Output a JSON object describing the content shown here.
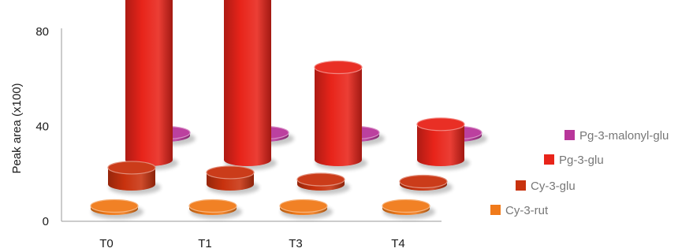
{
  "chart_data": {
    "type": "bar",
    "subtype": "3d-cylinder",
    "title": "",
    "xlabel": "",
    "ylabel": "Peak area (x100)",
    "ylim": [
      0,
      80
    ],
    "yticks": [
      0,
      40,
      80
    ],
    "categories": [
      "T0",
      "T1",
      "T3",
      "T4"
    ],
    "series": [
      {
        "name": "Cy-3-rut",
        "color": "#f07a1a",
        "values": [
          0.5,
          0.5,
          0.5,
          0.5
        ]
      },
      {
        "name": "Cy-3-glu",
        "color": "#c8320e",
        "values": [
          7,
          5,
          2,
          0.5
        ]
      },
      {
        "name": "Pg-3-glu",
        "color": "#e8241a",
        "values": [
          83,
          72,
          39,
          15
        ]
      },
      {
        "name": "Pg-3-malonyl-glu",
        "color": "#b8369a",
        "values": [
          0.5,
          0.5,
          0.5,
          0.5
        ]
      }
    ],
    "legend_position": "right",
    "grid": false
  }
}
